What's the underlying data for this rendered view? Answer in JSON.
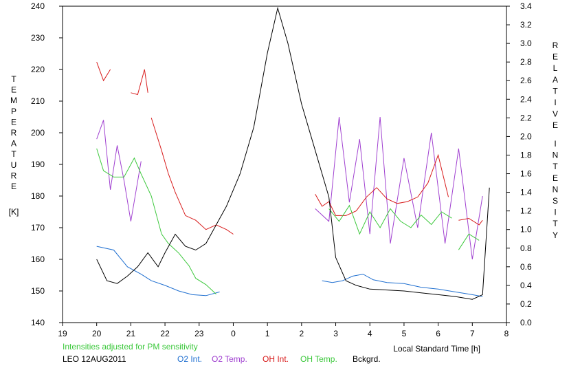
{
  "chart_data": {
    "type": "line",
    "xlabel": "Local Standard Time [h]",
    "ylabel_left": "TEMPERATURE [K]",
    "ylabel_left_letters": [
      "T",
      "E",
      "M",
      "P",
      "E",
      "R",
      "A",
      "T",
      "U",
      "R",
      "E"
    ],
    "ylabel_left_unit": "[K]",
    "ylabel_right": "RELATIVE INTENSITY",
    "ylabel_right_words": [
      [
        "R",
        "E",
        "L",
        "A",
        "T",
        "I",
        "V",
        "E"
      ],
      [
        "I",
        "N",
        "T",
        "E",
        "N",
        "S",
        "I",
        "T",
        "Y"
      ]
    ],
    "note": "Intensities adjusted for PM sensitivity",
    "site_date": "LEO 12AUG2011",
    "x_ticks": [
      "19",
      "20",
      "21",
      "22",
      "23",
      "0",
      "1",
      "2",
      "3",
      "4",
      "5",
      "6",
      "7",
      "8"
    ],
    "xlim": [
      19,
      32
    ],
    "ylim_left": [
      140,
      240
    ],
    "y_ticks_left": [
      "140",
      "150",
      "160",
      "170",
      "180",
      "190",
      "200",
      "210",
      "220",
      "230",
      "240"
    ],
    "ylim_right": [
      0.0,
      3.4
    ],
    "y_ticks_right": [
      "0.0",
      "0.2",
      "0.4",
      "0.6",
      "0.8",
      "1.0",
      "1.2",
      "1.4",
      "1.6",
      "1.8",
      "2.0",
      "2.2",
      "2.4",
      "2.6",
      "2.8",
      "3.0",
      "3.2",
      "3.4"
    ],
    "grid": false,
    "legend_position": "bottom",
    "series": [
      {
        "name": "O2 Int.",
        "axis": "right",
        "color": "#1f6fd0",
        "x": [
          20.0,
          20.5,
          20.9,
          21.3,
          21.6,
          22.0,
          22.4,
          22.8,
          23.2,
          23.6,
          null,
          26.6,
          26.9,
          27.2,
          27.5,
          27.8,
          28.1,
          28.5,
          29.0,
          29.5,
          30.0,
          30.5,
          31.0,
          31.3
        ],
        "y": [
          0.82,
          0.78,
          0.6,
          0.52,
          0.45,
          0.4,
          0.34,
          0.3,
          0.29,
          0.33,
          null,
          0.45,
          0.43,
          0.45,
          0.5,
          0.52,
          0.46,
          0.43,
          0.42,
          0.38,
          0.36,
          0.33,
          0.3,
          0.28
        ]
      },
      {
        "name": "O2 Temp.",
        "axis": "left",
        "color": "#a040d0",
        "x": [
          20.0,
          20.2,
          20.4,
          20.6,
          20.8,
          21.0,
          21.3,
          null,
          26.4,
          26.8,
          27.1,
          27.4,
          27.7,
          28.0,
          28.3,
          28.6,
          29.0,
          29.4,
          29.8,
          30.2,
          30.6,
          31.0,
          31.3
        ],
        "y": [
          198,
          204,
          182,
          196,
          185,
          172,
          191,
          null,
          176,
          172,
          205,
          178,
          198,
          168,
          205,
          165,
          192,
          170,
          200,
          165,
          195,
          160,
          180
        ]
      },
      {
        "name": "OH Int.",
        "axis": "right",
        "color": "#d81c1c",
        "x": [
          20.0,
          20.2,
          20.4,
          null,
          21.0,
          21.2,
          21.4,
          21.5,
          null,
          21.6,
          21.9,
          22.1,
          22.3,
          22.6,
          22.9,
          23.2,
          23.5,
          23.8,
          24.0,
          null,
          26.4,
          26.6,
          26.8,
          27.0,
          27.3,
          27.6,
          27.9,
          28.2,
          28.5,
          28.8,
          29.1,
          29.4,
          29.7,
          30.0,
          30.3,
          null,
          30.6,
          30.9,
          31.2,
          31.3
        ],
        "y": [
          2.8,
          2.6,
          2.72,
          null,
          2.47,
          2.45,
          2.72,
          2.47,
          null,
          2.2,
          1.85,
          1.6,
          1.4,
          1.15,
          1.1,
          1.0,
          1.05,
          1.0,
          0.95,
          null,
          1.38,
          1.25,
          1.3,
          1.15,
          1.15,
          1.2,
          1.35,
          1.45,
          1.33,
          1.28,
          1.3,
          1.35,
          1.5,
          1.8,
          1.35,
          null,
          1.1,
          1.12,
          1.05,
          1.1
        ]
      },
      {
        "name": "OH Temp.",
        "axis": "left",
        "color": "#3cc83c",
        "x": [
          20.0,
          20.2,
          20.5,
          20.8,
          21.1,
          21.3,
          21.6,
          21.9,
          22.1,
          22.4,
          22.7,
          22.9,
          23.2,
          23.5,
          null,
          26.8,
          27.1,
          27.4,
          27.7,
          28.0,
          28.3,
          28.6,
          28.9,
          29.2,
          29.5,
          29.8,
          30.1,
          30.4,
          null,
          30.6,
          30.9,
          31.2
        ],
        "y": [
          195,
          188,
          186,
          186,
          192,
          187,
          180,
          168,
          165,
          162,
          158,
          154,
          152,
          149,
          null,
          176,
          172,
          177,
          168,
          175,
          170,
          176,
          172,
          170,
          174,
          171,
          175,
          173,
          null,
          163,
          168,
          166
        ]
      },
      {
        "name": "Bckgrd.",
        "axis": "right",
        "color": "#000000",
        "x": [
          20.0,
          20.3,
          20.6,
          20.9,
          21.2,
          21.5,
          21.8,
          22.0,
          22.3,
          22.6,
          22.9,
          23.2,
          23.5,
          23.8,
          24.2,
          24.6,
          25.0,
          25.3,
          25.6,
          26.0,
          26.4,
          26.8,
          27.0,
          27.3,
          27.6,
          28.0,
          28.5,
          29.0,
          29.5,
          30.0,
          30.5,
          31.0,
          31.3,
          31.5
        ],
        "y": [
          0.68,
          0.45,
          0.42,
          0.5,
          0.6,
          0.75,
          0.6,
          0.75,
          0.95,
          0.82,
          0.78,
          0.85,
          1.05,
          1.25,
          1.6,
          2.1,
          2.9,
          3.38,
          3.0,
          2.35,
          1.85,
          1.35,
          0.7,
          0.45,
          0.4,
          0.36,
          0.35,
          0.34,
          0.32,
          0.3,
          0.28,
          0.25,
          0.3,
          1.45
        ]
      }
    ]
  }
}
